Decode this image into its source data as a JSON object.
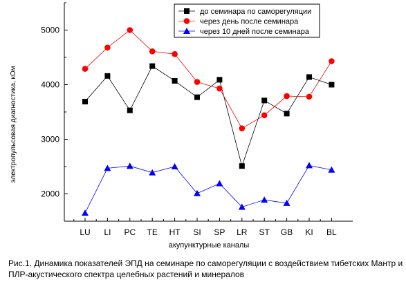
{
  "chart_data": {
    "type": "line",
    "categories": [
      "LU",
      "LI",
      "PC",
      "TE",
      "HT",
      "SI",
      "SP",
      "LR",
      "ST",
      "GB",
      "KI",
      "BL"
    ],
    "series": [
      {
        "name": "до семинара по саморегуляции",
        "color": "#000000",
        "marker": "square",
        "values": [
          3690,
          4160,
          3530,
          4340,
          4070,
          3770,
          4090,
          2510,
          3710,
          3470,
          4140,
          4000
        ]
      },
      {
        "name": "через день после семинара",
        "color": "#ff0000",
        "marker": "circle",
        "values": [
          4290,
          4680,
          5000,
          4610,
          4560,
          4050,
          3930,
          3200,
          3440,
          3790,
          3780,
          4430
        ]
      },
      {
        "name": "через 10 дней после семинара",
        "color": "#0000ff",
        "marker": "triangle",
        "values": [
          1650,
          2470,
          2510,
          2390,
          2500,
          2010,
          2190,
          1760,
          1890,
          1830,
          2520,
          2440
        ]
      }
    ],
    "xlabel": "акупунктурные каналы",
    "ylabel": "электропульсовая диагностика, кОм",
    "ylim": [
      1500,
      5500
    ],
    "yticks": [
      2000,
      3000,
      4000,
      5000
    ],
    "legend_position": "top-right",
    "grid": false
  },
  "caption": "Рис.1. Динамика показателей ЭПД на семинаре по саморегуляции с воздействием тибетских Мантр и ПЛР-акустического спектра целебных растений и минералов"
}
